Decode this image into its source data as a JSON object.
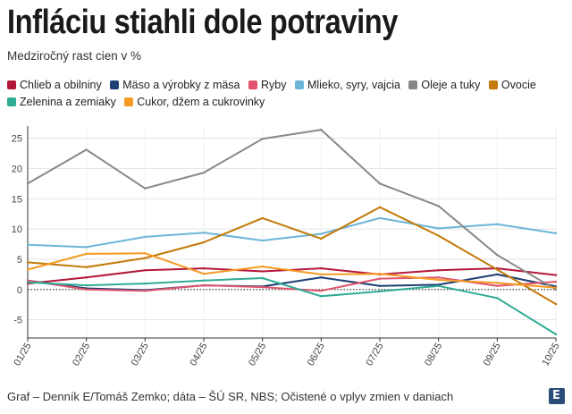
{
  "title": "Infláciu stiahli dole potraviny",
  "subtitle": "Medziročný rast cien v %",
  "footer": "Graf – Denník E/Tomáš Zemko; dáta – ŠÚ SR, NBS; Očistené o vplyv zmien v daniach",
  "logo_icon": "denník-e-logo-icon",
  "logo_char": "E",
  "chart_data": {
    "type": "line",
    "x": [
      "01/25",
      "02/25",
      "03/25",
      "04/25",
      "05/25",
      "06/25",
      "07/25",
      "08/25",
      "09/25",
      "10/25"
    ],
    "ylim": [
      -8,
      27
    ],
    "yticks": [
      -5,
      0,
      5,
      10,
      15,
      20,
      25
    ],
    "grid": true,
    "legend_position": "top",
    "series": [
      {
        "name": "Chlieb a obilniny",
        "color": "#b3183a",
        "values": [
          1.0,
          2.0,
          3.2,
          3.5,
          3.0,
          3.5,
          2.5,
          3.2,
          3.5,
          2.4
        ]
      },
      {
        "name": "Mäso a výrobky z mäsa",
        "color": "#1d3f73",
        "values": [
          1.5,
          0.2,
          -0.1,
          0.7,
          0.5,
          2.0,
          0.6,
          0.8,
          2.5,
          0.5
        ]
      },
      {
        "name": "Ryby",
        "color": "#e0546e",
        "values": [
          1.5,
          0.0,
          -0.2,
          0.7,
          0.4,
          -0.2,
          1.8,
          2.0,
          0.6,
          1.3
        ]
      },
      {
        "name": "Mlieko, syry, vajcia",
        "color": "#6cb5d9",
        "values": [
          7.4,
          7.0,
          8.7,
          9.4,
          8.1,
          9.2,
          11.8,
          10.1,
          10.8,
          9.3
        ]
      },
      {
        "name": "Oleje a tuky",
        "color": "#888888",
        "values": [
          17.5,
          23.1,
          16.7,
          19.3,
          24.9,
          26.4,
          17.5,
          13.8,
          5.7,
          0.0
        ]
      },
      {
        "name": "Ovocie",
        "color": "#c27a08",
        "values": [
          4.5,
          3.7,
          5.2,
          7.8,
          11.8,
          8.4,
          13.6,
          8.9,
          3.3,
          -2.4
        ]
      },
      {
        "name": "Zelenina a zemiaky",
        "color": "#2eab93",
        "values": [
          1.2,
          0.7,
          1.0,
          1.5,
          1.9,
          -1.1,
          -0.3,
          0.6,
          -1.4,
          -7.4
        ]
      },
      {
        "name": "Cukor, džem a cukrovinky",
        "color": "#f59a23",
        "values": [
          3.3,
          5.9,
          6.0,
          2.6,
          3.8,
          2.5,
          2.6,
          1.6,
          1.1,
          0.3
        ]
      }
    ]
  }
}
